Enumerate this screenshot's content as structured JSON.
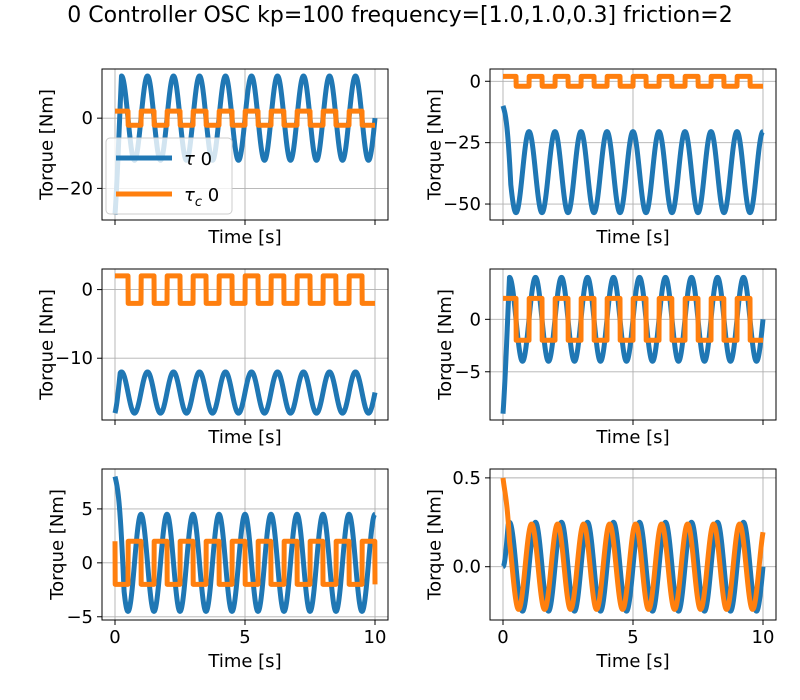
{
  "figure": {
    "title": "0 Controller OSC kp=100 frequency=[1.0,1.0,0.3] friction=2"
  },
  "colors": {
    "tau": "#1f77b4",
    "tau_c": "#ff7f0e",
    "grid": "#b0b0b0"
  },
  "chart_data": [
    {
      "type": "line",
      "panel": "top-left",
      "xlabel": "Time [s]",
      "ylabel": "Torque [Nm]",
      "xlim": [
        -0.5,
        10.5
      ],
      "ylim": [
        -29,
        14
      ],
      "xticks": [
        0,
        5,
        10
      ],
      "xtick_labels": [
        "",
        "",
        ""
      ],
      "yticks": [
        0,
        -20
      ],
      "ytick_labels": [
        "0",
        "−20"
      ],
      "grid": true,
      "legend": {
        "placement": "lower-left",
        "entries": [
          "τ 0",
          "τ_c 0"
        ]
      },
      "series": [
        {
          "name": "τ 0",
          "color": "#1f77b4",
          "model": "sine",
          "start": -27.5,
          "offset": 0,
          "amplitude": 12,
          "frequency": 1.0,
          "phase": 0.0,
          "approach": 0.25
        },
        {
          "name": "τ_c 0",
          "color": "#ff7f0e",
          "model": "square",
          "start": -2,
          "offset": 0,
          "amplitude": 2,
          "frequency": 1.0,
          "phase": 0.0,
          "approach": 0.0
        }
      ]
    },
    {
      "type": "line",
      "panel": "top-right",
      "xlabel": "Time [s]",
      "ylabel": "Torque [Nm]",
      "xlim": [
        -0.5,
        10.5
      ],
      "ylim": [
        -56.5,
        5
      ],
      "xticks": [
        0,
        5,
        10
      ],
      "xtick_labels": [
        "",
        "",
        ""
      ],
      "yticks": [
        0,
        -25,
        -50
      ],
      "ytick_labels": [
        "0",
        "−25",
        "−50"
      ],
      "grid": true,
      "series": [
        {
          "name": "τ 0",
          "color": "#1f77b4",
          "model": "sine",
          "start": -10,
          "offset": -37,
          "amplitude": 16.5,
          "frequency": 1.0,
          "phase": 0.25,
          "approach": 0.3
        },
        {
          "name": "τ_c 0",
          "color": "#ff7f0e",
          "model": "square",
          "start": 2,
          "offset": 0,
          "amplitude": 2,
          "frequency": 1.0,
          "phase": 0.0,
          "approach": 0.0
        }
      ]
    },
    {
      "type": "line",
      "panel": "middle-left",
      "xlabel": "Time [s]",
      "ylabel": "Torque [Nm]",
      "xlim": [
        -0.5,
        10.5
      ],
      "ylim": [
        -19,
        3
      ],
      "xticks": [
        0,
        5,
        10
      ],
      "xtick_labels": [
        "",
        "",
        ""
      ],
      "yticks": [
        0,
        -10
      ],
      "ytick_labels": [
        "0",
        "−10"
      ],
      "grid": true,
      "series": [
        {
          "name": "τ 0",
          "color": "#1f77b4",
          "model": "sine",
          "start": -18,
          "offset": -15,
          "amplitude": 3,
          "frequency": 1.0,
          "phase": 0.0,
          "approach": 0.2
        },
        {
          "name": "τ_c 0",
          "color": "#ff7f0e",
          "model": "square",
          "start": -2,
          "offset": 0,
          "amplitude": 2,
          "frequency": 1.0,
          "phase": 0.0,
          "approach": 0.0
        }
      ]
    },
    {
      "type": "line",
      "panel": "middle-right",
      "xlabel": "Time [s]",
      "ylabel": "Torque [Nm]",
      "xlim": [
        -0.5,
        10.5
      ],
      "ylim": [
        -9.6,
        4.8
      ],
      "xticks": [
        0,
        5,
        10
      ],
      "xtick_labels": [
        "",
        "",
        ""
      ],
      "yticks": [
        0,
        -5
      ],
      "ytick_labels": [
        "0",
        "−5"
      ],
      "grid": true,
      "series": [
        {
          "name": "τ 0",
          "color": "#1f77b4",
          "model": "sine",
          "start": -9,
          "offset": 0,
          "amplitude": 4,
          "frequency": 1.0,
          "phase": 0.0,
          "approach": 0.25
        },
        {
          "name": "τ_c 0",
          "color": "#ff7f0e",
          "model": "square",
          "start": -2,
          "offset": 0,
          "amplitude": 2,
          "frequency": 1.0,
          "phase": 0.0,
          "approach": 0.0
        }
      ]
    },
    {
      "type": "line",
      "panel": "bottom-left",
      "xlabel": "Time [s]",
      "ylabel": "Torque [Nm]",
      "xlim": [
        -0.5,
        10.5
      ],
      "ylim": [
        -5.3,
        8.7
      ],
      "xticks": [
        0,
        5,
        10
      ],
      "xtick_labels": [
        "0",
        "5",
        "10"
      ],
      "yticks": [
        5,
        0,
        -5
      ],
      "ytick_labels": [
        "5",
        "0",
        "−5"
      ],
      "grid": true,
      "series": [
        {
          "name": "τ 0",
          "color": "#1f77b4",
          "model": "sine",
          "start": 8,
          "offset": 0,
          "amplitude": 4.5,
          "frequency": 1.0,
          "phase": 0.25,
          "approach": 0.35
        },
        {
          "name": "τ_c 0",
          "color": "#ff7f0e",
          "model": "square",
          "start": 2,
          "offset": 0,
          "amplitude": 2,
          "frequency": 1.0,
          "phase": 0.5,
          "approach": 0.0
        }
      ]
    },
    {
      "type": "line",
      "panel": "bottom-right",
      "xlabel": "Time [s]",
      "ylabel": "Torque [Nm]",
      "xlim": [
        -0.5,
        10.5
      ],
      "ylim": [
        -0.3,
        0.55
      ],
      "xticks": [
        0,
        5,
        10
      ],
      "xtick_labels": [
        "0",
        "5",
        "10"
      ],
      "yticks": [
        0.5,
        0.0
      ],
      "ytick_labels": [
        "0.5",
        "0.0"
      ],
      "grid": true,
      "series": [
        {
          "name": "τ 0",
          "color": "#1f77b4",
          "model": "sine",
          "start": 0.0,
          "offset": 0,
          "amplitude": 0.25,
          "frequency": 1.0,
          "phase": 0.0,
          "approach": 0.2
        },
        {
          "name": "τ_c 0",
          "color": "#ff7f0e",
          "model": "sine",
          "start": 0.5,
          "offset": 0,
          "amplitude": 0.24,
          "frequency": 1.0,
          "phase": 0.15,
          "approach": 0.25
        }
      ]
    }
  ]
}
